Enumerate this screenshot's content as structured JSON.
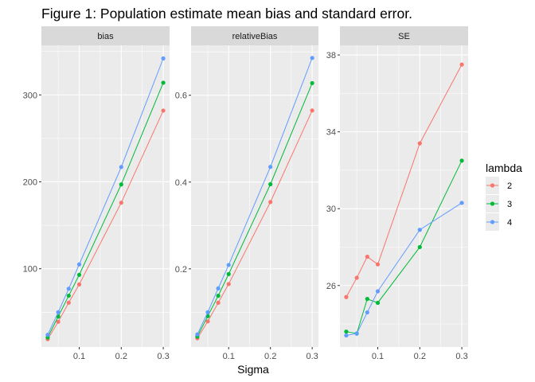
{
  "chart_data": {
    "type": "line",
    "title": "Figure 1: Population estimate mean bias and standard error.",
    "xlabel": "Sigma",
    "ylabel": "",
    "legend": {
      "title": "lambda",
      "placement": "right",
      "entries": [
        {
          "label": "2",
          "color": "#F8766D"
        },
        {
          "label": "3",
          "color": "#00BA38"
        },
        {
          "label": "4",
          "color": "#619CFF"
        }
      ]
    },
    "x": [
      0.025,
      0.05,
      0.075,
      0.1,
      0.2,
      0.3
    ],
    "xlim": [
      0.01,
      0.315
    ],
    "xticks": [
      0.1,
      0.2,
      0.3
    ],
    "xtick_labels": [
      "0.1",
      "0.2",
      "0.3"
    ],
    "grid": true,
    "facets": [
      {
        "strip": "bias",
        "ylim": [
          10,
          357
        ],
        "yticks": [
          100,
          200,
          300
        ],
        "ytick_labels": [
          "100",
          "200",
          "300"
        ],
        "series": [
          {
            "name": "2",
            "color": "#F8766D",
            "values": [
              19,
              39,
              61,
              82,
              176,
              282
            ]
          },
          {
            "name": "3",
            "color": "#00BA38",
            "values": [
              21,
              45,
              69,
              93,
              197,
              314
            ]
          },
          {
            "name": "4",
            "color": "#619CFF",
            "values": [
              24,
              50,
              77,
              105,
              217,
              342
            ]
          }
        ]
      },
      {
        "strip": "relativeBias",
        "ylim": [
          0.02,
          0.715
        ],
        "yticks": [
          0.2,
          0.4,
          0.6
        ],
        "ytick_labels": [
          "0.2",
          "0.4",
          "0.6"
        ],
        "series": [
          {
            "name": "2",
            "color": "#F8766D",
            "values": [
              0.04,
              0.079,
              0.122,
              0.165,
              0.354,
              0.565
            ]
          },
          {
            "name": "3",
            "color": "#00BA38",
            "values": [
              0.044,
              0.091,
              0.138,
              0.188,
              0.395,
              0.628
            ]
          },
          {
            "name": "4",
            "color": "#619CFF",
            "values": [
              0.049,
              0.1,
              0.155,
              0.209,
              0.435,
              0.686
            ]
          }
        ]
      },
      {
        "strip": "SE",
        "ylim": [
          22.8,
          38.5
        ],
        "yticks": [
          26,
          30,
          34,
          38
        ],
        "ytick_labels": [
          "26",
          "30",
          "34",
          "38"
        ],
        "series": [
          {
            "name": "2",
            "color": "#F8766D",
            "values": [
              25.4,
              26.4,
              27.5,
              27.1,
              33.4,
              37.5
            ]
          },
          {
            "name": "3",
            "color": "#00BA38",
            "values": [
              23.6,
              23.5,
              25.3,
              25.1,
              28.0,
              32.5
            ]
          },
          {
            "name": "4",
            "color": "#619CFF",
            "values": [
              23.4,
              23.5,
              24.6,
              25.7,
              28.9,
              30.3
            ]
          }
        ]
      }
    ]
  }
}
